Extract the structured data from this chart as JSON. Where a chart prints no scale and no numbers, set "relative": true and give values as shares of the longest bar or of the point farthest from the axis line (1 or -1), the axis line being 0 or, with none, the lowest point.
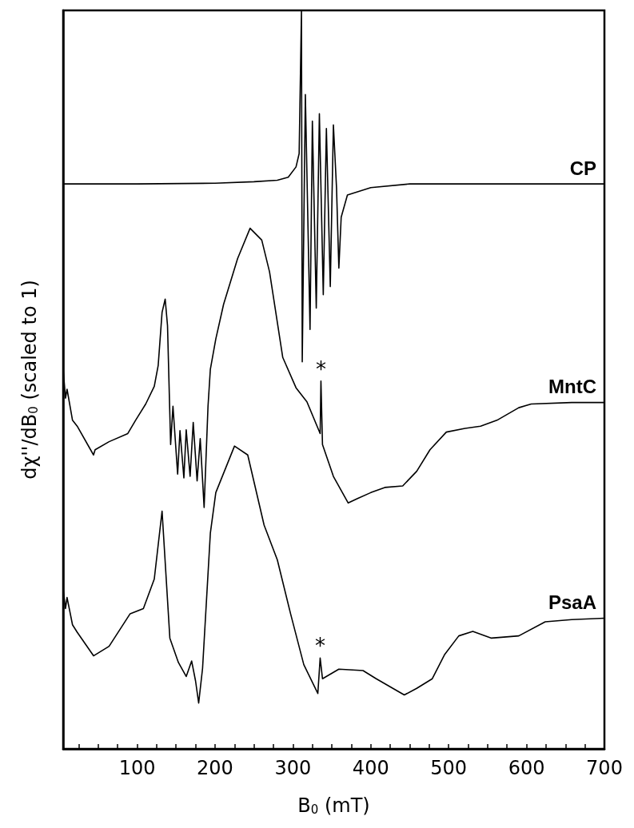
{
  "chart_data": {
    "type": "line",
    "relative": true,
    "xlabel": "B$_{0}$ (mT)",
    "ylabel": "dχ''/dB$_{0}$ (scaled to 1)",
    "xlim": [
      5,
      700
    ],
    "xticks": [
      {
        "value": 25,
        "label": null
      },
      {
        "value": 50,
        "label": null
      },
      {
        "value": 75,
        "label": null
      },
      100,
      {
        "value": 125,
        "label": null
      },
      {
        "value": 150,
        "label": null
      },
      {
        "value": 175,
        "label": null
      },
      200,
      {
        "value": 225,
        "label": null
      },
      {
        "value": 250,
        "label": null
      },
      {
        "value": 275,
        "label": null
      },
      300,
      {
        "value": 325,
        "label": null
      },
      {
        "value": 350,
        "label": null
      },
      {
        "value": 375,
        "label": null
      },
      400,
      {
        "value": 425,
        "label": null
      },
      {
        "value": 450,
        "label": null
      },
      {
        "value": 475,
        "label": null
      },
      500,
      {
        "value": 525,
        "label": null
      },
      {
        "value": 550,
        "label": null
      },
      {
        "value": 575,
        "label": null
      },
      600,
      {
        "value": 625,
        "label": null
      },
      {
        "value": 650,
        "label": null
      },
      {
        "value": 675,
        "label": null
      },
      700
    ],
    "grid": false,
    "legend": false,
    "line_style": "solid",
    "series": [
      {
        "name": "CP",
        "color": "#000000",
        "x": [
          5,
          100,
          200,
          250,
          280,
          294,
          304,
          308,
          311,
          312,
          316,
          322,
          325,
          330,
          334,
          339,
          343,
          348,
          352,
          356,
          359,
          362,
          370,
          400,
          450,
          550,
          700
        ],
        "values": [
          0.765,
          0.765,
          0.766,
          0.768,
          0.77,
          0.774,
          0.788,
          0.806,
          1.0,
          0.524,
          0.886,
          0.568,
          0.85,
          0.597,
          0.86,
          0.615,
          0.84,
          0.626,
          0.845,
          0.76,
          0.651,
          0.72,
          0.75,
          0.76,
          0.765,
          0.765,
          0.765
        ]
      },
      {
        "name": "MntC",
        "color": "#000000",
        "x": [
          5,
          8,
          10,
          17,
          23,
          44,
          46,
          64,
          88,
          98,
          111,
          122,
          127,
          132,
          136,
          139,
          143,
          146,
          152,
          155,
          160,
          163,
          168,
          172,
          177,
          181,
          186,
          191,
          194,
          201,
          211,
          229,
          245,
          260,
          270,
          287,
          304,
          318,
          335,
          336,
          338,
          352,
          371,
          383,
          400,
          418,
          441,
          459,
          476,
          497,
          521,
          541,
          562,
          590,
          606,
          658,
          700
        ],
        "values": [
          0.514,
          0.475,
          0.487,
          0.445,
          0.437,
          0.398,
          0.405,
          0.416,
          0.427,
          0.445,
          0.467,
          0.491,
          0.519,
          0.591,
          0.609,
          0.573,
          0.412,
          0.464,
          0.372,
          0.431,
          0.367,
          0.432,
          0.369,
          0.442,
          0.363,
          0.42,
          0.327,
          0.464,
          0.514,
          0.555,
          0.602,
          0.664,
          0.705,
          0.689,
          0.646,
          0.53,
          0.489,
          0.47,
          0.427,
          0.498,
          0.412,
          0.369,
          0.333,
          0.339,
          0.347,
          0.354,
          0.356,
          0.376,
          0.405,
          0.429,
          0.434,
          0.437,
          0.445,
          0.462,
          0.467,
          0.469,
          0.469
        ]
      },
      {
        "name": "PsaA",
        "color": "#000000",
        "x": [
          5,
          8,
          10,
          17,
          23,
          44,
          64,
          91,
          108,
          122,
          132,
          142,
          153,
          163,
          170,
          175,
          179,
          184,
          194,
          201,
          225,
          242,
          263,
          280,
          297,
          314,
          332,
          335,
          338,
          359,
          390,
          407,
          443,
          459,
          479,
          495,
          513,
          531,
          555,
          590,
          624,
          658,
          700
        ],
        "values": [
          0.216,
          0.19,
          0.205,
          0.168,
          0.158,
          0.126,
          0.139,
          0.183,
          0.19,
          0.23,
          0.322,
          0.15,
          0.117,
          0.098,
          0.119,
          0.092,
          0.062,
          0.109,
          0.292,
          0.347,
          0.41,
          0.398,
          0.303,
          0.256,
          0.183,
          0.114,
          0.075,
          0.123,
          0.095,
          0.108,
          0.106,
          0.095,
          0.073,
          0.082,
          0.095,
          0.128,
          0.153,
          0.159,
          0.15,
          0.153,
          0.172,
          0.175,
          0.177
        ]
      }
    ],
    "annotations": [
      {
        "text": "*",
        "x": 336,
        "y": 0.498
      },
      {
        "text": "*",
        "x": 335,
        "y": 0.123
      }
    ]
  }
}
